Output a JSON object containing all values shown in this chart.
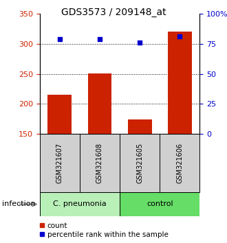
{
  "title": "GDS3573 / 209148_at",
  "samples": [
    "GSM321607",
    "GSM321608",
    "GSM321605",
    "GSM321606"
  ],
  "bar_values": [
    215,
    251,
    174,
    320
  ],
  "percentile_values": [
    79,
    79,
    76,
    81
  ],
  "ylim_left": [
    150,
    350
  ],
  "ylim_right": [
    0,
    100
  ],
  "yticks_left": [
    150,
    200,
    250,
    300,
    350
  ],
  "yticks_right": [
    0,
    25,
    50,
    75,
    100
  ],
  "yticklabels_right": [
    "0",
    "25",
    "50",
    "75",
    "100%"
  ],
  "bar_color": "#cc2200",
  "percentile_color": "#0000cc",
  "groups": [
    {
      "label": "C. pneumonia",
      "indices": [
        0,
        1
      ],
      "color": "#b8f0b8"
    },
    {
      "label": "control",
      "indices": [
        2,
        3
      ],
      "color": "#66dd66"
    }
  ],
  "sample_box_color": "#d0d0d0",
  "legend_items": [
    {
      "label": "count",
      "color": "#cc2200"
    },
    {
      "label": "percentile rank within the sample",
      "color": "#0000cc"
    }
  ],
  "title_fontsize": 10,
  "tick_fontsize": 8,
  "sample_fontsize": 7,
  "group_fontsize": 8,
  "legend_fontsize": 7.5,
  "infection_fontsize": 8,
  "grid_ticks": [
    200,
    250,
    300
  ]
}
